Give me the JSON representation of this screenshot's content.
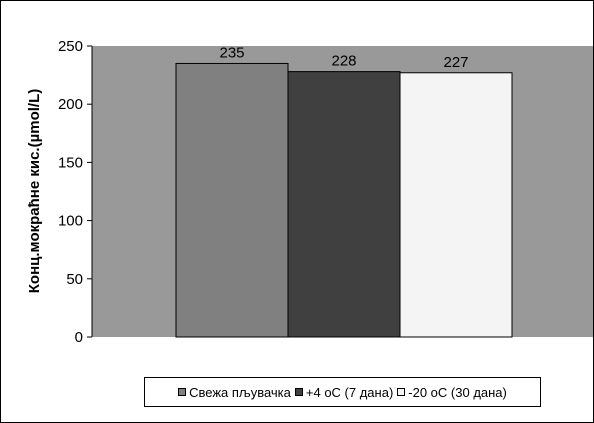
{
  "chart_data": {
    "type": "bar",
    "title": "",
    "xlabel": "",
    "ylabel": "Конц.мокраћне кис.(µmol/L)",
    "ylim": [
      0,
      250
    ],
    "yticks": [
      "0",
      "50",
      "100",
      "150",
      "200",
      "250"
    ],
    "grid": false,
    "legend_position": "bottom",
    "plot_background": "#999999",
    "series": [
      {
        "name": "Свежа пљувачка",
        "value": 235,
        "label": "235",
        "color": "#808080"
      },
      {
        "name": "+4 оС (7 дана)",
        "value": 228,
        "label": "228",
        "color": "#404040"
      },
      {
        "name": "-20 оС (30 дана)",
        "value": 227,
        "label": "227",
        "color": "#f4f4f4"
      }
    ]
  }
}
